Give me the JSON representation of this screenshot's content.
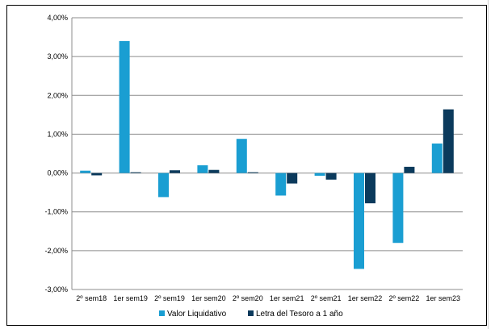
{
  "chart_data": {
    "type": "bar",
    "categories": [
      "2º sem18",
      "1er sem19",
      "2º sem19",
      "1er sem20",
      "2º sem20",
      "1er sem21",
      "2º sem21",
      "1er sem22",
      "2º sem22",
      "1er sem23"
    ],
    "series": [
      {
        "name": "Valor Liquidativo",
        "color": "#1a9ed2",
        "values": [
          0.06,
          3.4,
          -0.62,
          0.2,
          0.88,
          -0.58,
          -0.07,
          -2.47,
          -1.8,
          0.76
        ]
      },
      {
        "name": "Letra del Tesoro a 1 año",
        "color": "#0b3a5c",
        "values": [
          -0.06,
          0.02,
          0.07,
          0.08,
          0.02,
          -0.27,
          -0.17,
          -0.78,
          0.16,
          1.64
        ]
      }
    ],
    "yticks": [
      "4,00%",
      "3,00%",
      "2,00%",
      "1,00%",
      "0,00%",
      "-1,00%",
      "-2,00%",
      "-3,00%"
    ],
    "ylim": [
      -3,
      4
    ],
    "grid": true,
    "legend": "bottom",
    "title": "",
    "xlabel": "",
    "ylabel": ""
  }
}
